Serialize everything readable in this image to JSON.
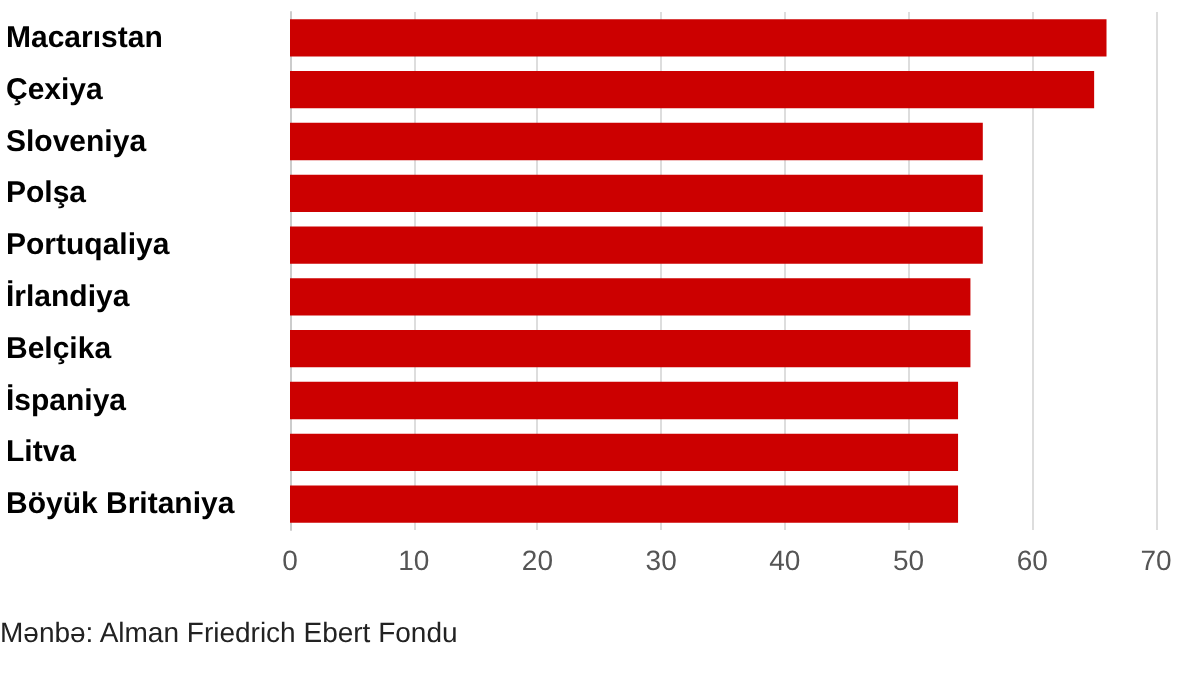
{
  "chart_data": {
    "type": "bar",
    "orientation": "horizontal",
    "categories": [
      "Macarıstan",
      "Çexiya",
      "Sloveniya",
      "Polşa",
      "Portuqaliya",
      "İrlandiya",
      "Belçika",
      "İspaniya",
      "Litva",
      "Böyük Britaniya"
    ],
    "values": [
      66,
      65,
      56,
      56,
      56,
      55,
      55,
      54,
      54,
      54
    ],
    "color": "#cc0000",
    "xlim": [
      0,
      70
    ],
    "xticks": [
      0,
      10,
      20,
      30,
      40,
      50,
      60,
      70
    ],
    "grid": "x",
    "annotations": [
      "Mənbə: Alman Friedrich Ebert Fondu"
    ]
  }
}
